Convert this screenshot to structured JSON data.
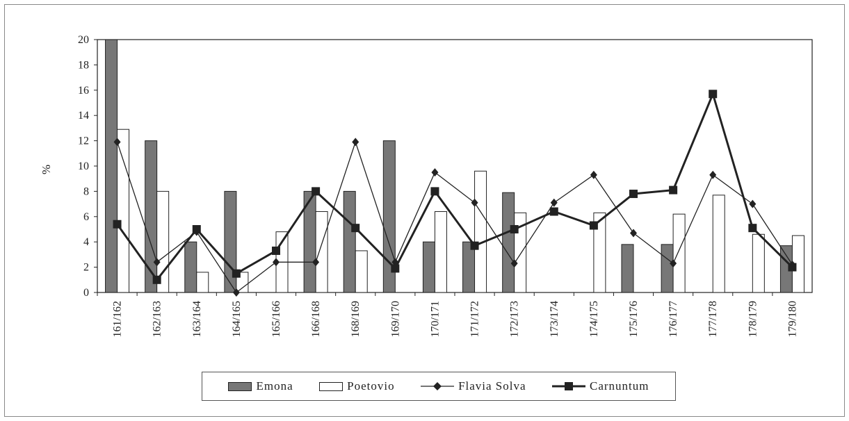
{
  "chart_data": {
    "type": "bar",
    "ylabel": "%",
    "xlabel": "",
    "ylim": [
      0,
      20
    ],
    "yticks": [
      0,
      2,
      4,
      6,
      8,
      10,
      12,
      14,
      16,
      18,
      20
    ],
    "categories": [
      "161/162",
      "162/163",
      "163/164",
      "164/165",
      "165/166",
      "166/168",
      "168/169",
      "169/170",
      "170/171",
      "171/172",
      "172/173",
      "173/174",
      "174/175",
      "175/176",
      "176/177",
      "177/178",
      "178/179",
      "179/180"
    ],
    "series": [
      {
        "name": "Emona",
        "kind": "bar",
        "color": "#777777",
        "values": [
          20,
          12,
          4,
          8,
          0,
          8,
          8,
          12,
          4,
          4,
          7.9,
          0,
          0,
          3.8,
          3.8,
          0,
          0,
          3.7
        ]
      },
      {
        "name": "Poetovio",
        "kind": "bar",
        "color": "#ffffff",
        "values": [
          12.9,
          8,
          1.6,
          1.6,
          4.8,
          6.4,
          3.3,
          0,
          6.4,
          9.6,
          6.3,
          0,
          6.3,
          0,
          6.2,
          7.7,
          4.6,
          4.5
        ]
      },
      {
        "name": "Flavia Solva",
        "kind": "line",
        "marker": "diamond",
        "color": "#222222",
        "values": [
          11.9,
          2.4,
          4.8,
          0,
          2.4,
          2.4,
          11.9,
          2.4,
          9.5,
          7.1,
          2.3,
          7.1,
          9.3,
          4.7,
          2.3,
          9.3,
          7,
          2.2
        ]
      },
      {
        "name": "Carnuntum",
        "kind": "line",
        "marker": "square",
        "color": "#222222",
        "values": [
          5.4,
          1,
          5,
          1.5,
          3.3,
          8,
          5.1,
          1.9,
          8,
          3.7,
          5,
          6.4,
          5.3,
          7.8,
          8.1,
          15.7,
          5.1,
          2
        ]
      }
    ],
    "legend": "bottom",
    "grid": false
  }
}
